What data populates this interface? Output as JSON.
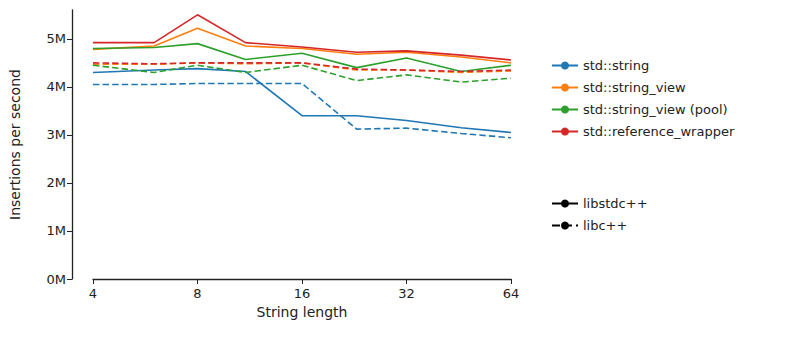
{
  "chart_data": {
    "type": "line",
    "x_label": "String length",
    "y_label": "Insertions per second",
    "log": "x",
    "grid": false,
    "x": [
      4,
      6,
      8,
      11,
      16,
      23,
      32,
      46,
      64
    ],
    "xlim": [
      4,
      64
    ],
    "xticks": [
      4,
      8,
      16,
      32,
      64
    ],
    "ylim": [
      0,
      5600000
    ],
    "yticks": [
      {
        "value": 0,
        "label": "0M"
      },
      {
        "value": 1000000,
        "label": "1M"
      },
      {
        "value": 2000000,
        "label": "2M"
      },
      {
        "value": 3000000,
        "label": "3M"
      },
      {
        "value": 4000000,
        "label": "4M"
      },
      {
        "value": 5000000,
        "label": "5M"
      }
    ],
    "legend": "right",
    "series": [
      {
        "name": "std::string",
        "color": "#1f77b4",
        "line_style": "solid",
        "values": [
          4300000,
          4350000,
          4380000,
          4320000,
          3400000,
          3400000,
          3300000,
          3150000,
          3050000
        ]
      },
      {
        "name": "std::string_view",
        "color": "#ff7f0e",
        "line_style": "solid",
        "values": [
          4780000,
          4850000,
          5220000,
          4850000,
          4800000,
          4680000,
          4720000,
          4620000,
          4500000
        ]
      },
      {
        "name": "std::string_view (pool)",
        "color": "#2ca02c",
        "line_style": "solid",
        "values": [
          4800000,
          4820000,
          4900000,
          4570000,
          4700000,
          4400000,
          4600000,
          4320000,
          4450000
        ]
      },
      {
        "name": "std::reference_wrapper",
        "color": "#d62728",
        "line_style": "solid",
        "values": [
          4920000,
          4920000,
          5500000,
          4920000,
          4830000,
          4720000,
          4750000,
          4660000,
          4560000
        ]
      },
      {
        "name": "std::string",
        "color": "#1f77b4",
        "line_style": "dashed",
        "values": [
          4050000,
          4050000,
          4070000,
          4070000,
          4070000,
          3120000,
          3140000,
          3030000,
          2940000
        ]
      },
      {
        "name": "std::string_view",
        "color": "#ff7f0e",
        "line_style": "dashed",
        "values": [
          4470000,
          4470000,
          4500000,
          4480000,
          4500000,
          4350000,
          4350000,
          4300000,
          4330000
        ]
      },
      {
        "name": "std::string_view (pool)",
        "color": "#2ca02c",
        "line_style": "dashed",
        "values": [
          4450000,
          4300000,
          4450000,
          4300000,
          4450000,
          4130000,
          4250000,
          4100000,
          4180000
        ]
      },
      {
        "name": "std::reference_wrapper",
        "color": "#d62728",
        "line_style": "dashed",
        "values": [
          4500000,
          4480000,
          4500000,
          4500000,
          4500000,
          4370000,
          4350000,
          4320000,
          4350000
        ]
      }
    ],
    "style_legend": [
      {
        "name": "libstdc++",
        "line_style": "solid",
        "color": "#000000"
      },
      {
        "name": "libc++",
        "line_style": "dashed",
        "color": "#000000"
      }
    ]
  }
}
